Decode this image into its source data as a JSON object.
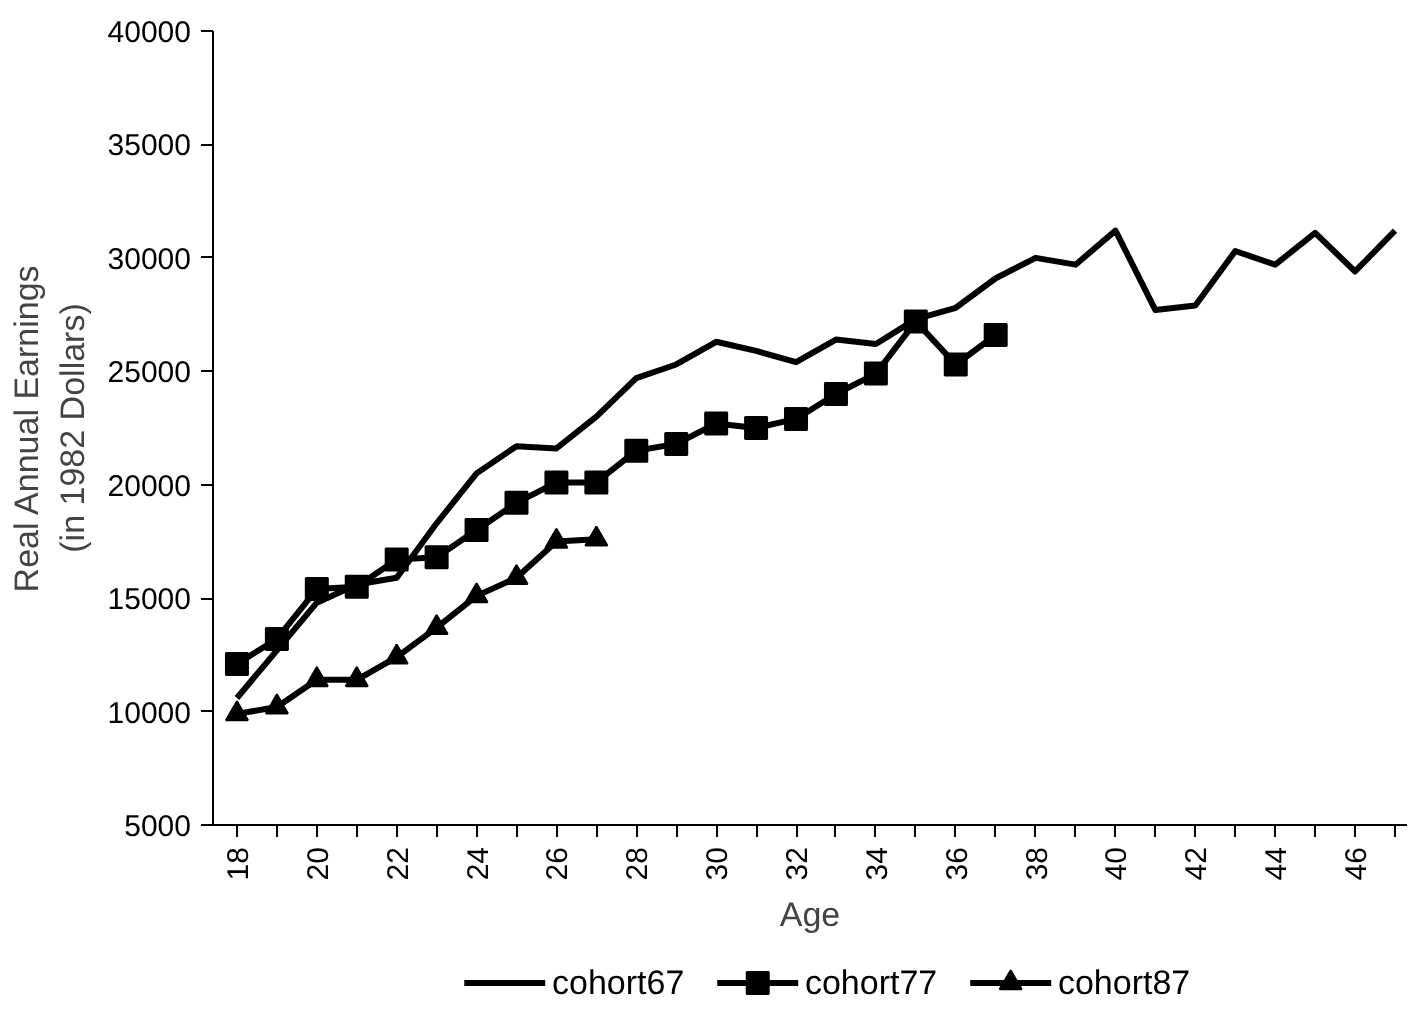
{
  "chart_data": {
    "type": "line",
    "xlabel": "Age",
    "ylabel": "Real Annual Earnings\n(in 1982 Dollars)",
    "x": [
      18,
      19,
      20,
      21,
      22,
      23,
      24,
      25,
      26,
      27,
      28,
      29,
      30,
      31,
      32,
      33,
      34,
      35,
      36,
      37,
      38,
      39,
      40,
      41,
      42,
      43,
      44,
      45,
      46,
      47
    ],
    "series": [
      {
        "name": "cohort67",
        "color": "#000000",
        "marker": "none",
        "values": [
          10600,
          12700,
          14800,
          15600,
          15900,
          18300,
          20500,
          21700,
          21600,
          23000,
          24700,
          25300,
          26300,
          25900,
          25400,
          26400,
          26200,
          27300,
          27800,
          29100,
          30000,
          29700,
          31200,
          27700,
          27900,
          30300,
          29700,
          31100,
          29400,
          31200
        ]
      },
      {
        "name": "cohort77",
        "color": "#000000",
        "marker": "square",
        "values": [
          12100,
          13200,
          15400,
          15500,
          16700,
          16800,
          18000,
          19200,
          20100,
          20100,
          21500,
          21800,
          22700,
          22500,
          22900,
          24000,
          24900,
          27200,
          25300,
          26600,
          null,
          null,
          null,
          null,
          null,
          null,
          null,
          null,
          null,
          null
        ]
      },
      {
        "name": "cohort87",
        "color": "#000000",
        "marker": "triangle",
        "values": [
          9900,
          10200,
          11400,
          11400,
          12400,
          13700,
          15100,
          15900,
          17500,
          17600,
          null,
          null,
          null,
          null,
          null,
          null,
          null,
          null,
          null,
          null,
          null,
          null,
          null,
          null,
          null,
          null,
          null,
          null,
          null,
          null
        ]
      }
    ],
    "xlim": [
      17.4,
      47.3
    ],
    "xticks": [
      18,
      {
        "value": 19,
        "label": null
      },
      20,
      {
        "value": 21,
        "label": null
      },
      22,
      {
        "value": 23,
        "label": null
      },
      24,
      {
        "value": 25,
        "label": null
      },
      26,
      {
        "value": 27,
        "label": null
      },
      28,
      {
        "value": 29,
        "label": null
      },
      30,
      {
        "value": 31,
        "label": null
      },
      32,
      {
        "value": 33,
        "label": null
      },
      34,
      {
        "value": 35,
        "label": null
      },
      36,
      {
        "value": 37,
        "label": null
      },
      38,
      {
        "value": 39,
        "label": null
      },
      40,
      {
        "value": 41,
        "label": null
      },
      42,
      {
        "value": 43,
        "label": null
      },
      44,
      {
        "value": 45,
        "label": null
      },
      46,
      {
        "value": 47,
        "label": null
      }
    ],
    "ylim": [
      5000,
      40000
    ],
    "yticks": [
      5000,
      10000,
      15000,
      20000,
      25000,
      30000,
      35000,
      40000
    ],
    "grid": false,
    "legend": "bottom"
  }
}
